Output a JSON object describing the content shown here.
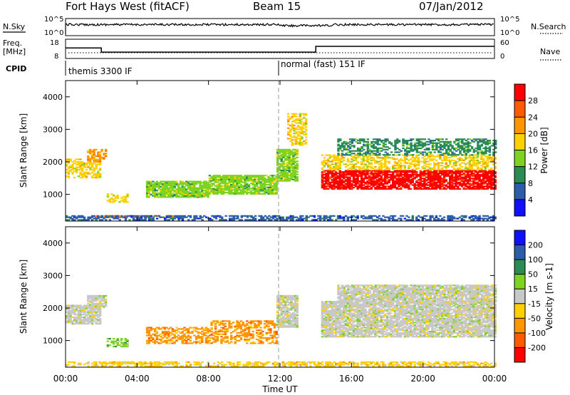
{
  "header": {
    "radar": "Fort Hays West (fitACF)",
    "beam": "Beam 15",
    "date": "07/Jan/2012"
  },
  "strip_labels": {
    "nsky": "N.Sky",
    "nsearch": "N.Search",
    "freq_line1": "Freq.",
    "freq_line2": "[MHz]",
    "nave": "Nave",
    "cpid": "CPID",
    "noise_ticks_left": [
      "10^5",
      "10^0"
    ],
    "noise_ticks_right": [
      "10^5",
      "10^0"
    ],
    "freq_ticks": [
      "18",
      "8"
    ],
    "nave_ticks": [
      "60",
      "0"
    ]
  },
  "cpid": {
    "segments": [
      {
        "label": "themis 3300 IF",
        "start_hour": 0
      },
      {
        "label": "normal (fast) 151 IF",
        "start_hour": 12
      }
    ]
  },
  "time_axis": {
    "label": "Time UT",
    "ticks": [
      "00:00",
      "04:00",
      "08:00",
      "12:00",
      "16:00",
      "20:00",
      "00:00"
    ]
  },
  "chart_data": [
    {
      "type": "line",
      "name": "frequency",
      "ylim": [
        8,
        18
      ],
      "x_hours": [
        0,
        2,
        2,
        14,
        14,
        24
      ],
      "y": [
        13.5,
        13.5,
        11,
        11,
        14.5,
        14.5
      ]
    },
    {
      "type": "heatmap",
      "name": "power",
      "ylabel": "Slant Range [km]",
      "ylim": [
        180,
        4500
      ],
      "y_ticks": [
        1000,
        2000,
        3000,
        4000
      ],
      "colorbar": {
        "label": "Power [dB]",
        "ticks": [
          "28",
          "24",
          "20",
          "16",
          "12",
          "8",
          "4"
        ],
        "colors": [
          "#ff0000",
          "#ff5a00",
          "#ff9600",
          "#ffd000",
          "#7ed321",
          "#2a8c55",
          "#2c5caa",
          "#1010ff"
        ]
      },
      "regions": [
        {
          "t0": 0,
          "t1": 1.9,
          "r0": 1500,
          "r1": 2100,
          "level": 3
        },
        {
          "t0": 1.2,
          "t1": 2.3,
          "r0": 2000,
          "r1": 2400,
          "level": 2
        },
        {
          "t0": 2.3,
          "t1": 3.5,
          "r0": 750,
          "r1": 1000,
          "level": 3
        },
        {
          "t0": 1.5,
          "t1": 6.2,
          "r0": 280,
          "r1": 360,
          "level": 1
        },
        {
          "t0": 4.5,
          "t1": 8.0,
          "r0": 900,
          "r1": 1400,
          "level": 4
        },
        {
          "t0": 8.0,
          "t1": 11.8,
          "r0": 1000,
          "r1": 1600,
          "level": 4
        },
        {
          "t0": 11.8,
          "t1": 13.0,
          "r0": 1400,
          "r1": 2400,
          "level": 4
        },
        {
          "t0": 12.4,
          "t1": 13.4,
          "r0": 2500,
          "r1": 3500,
          "level": 3
        },
        {
          "t0": 14.3,
          "t1": 24,
          "r0": 1150,
          "r1": 1750,
          "level": 0
        },
        {
          "t0": 14.3,
          "t1": 24,
          "r0": 1750,
          "r1": 2200,
          "level": 3
        },
        {
          "t0": 15.2,
          "t1": 24,
          "r0": 2200,
          "r1": 2700,
          "level": 5
        },
        {
          "t0": 0,
          "t1": 24,
          "r0": 200,
          "r1": 330,
          "level": 6
        }
      ]
    },
    {
      "type": "heatmap",
      "name": "velocity",
      "ylabel": "Slant Range [km]",
      "ylim": [
        180,
        4500
      ],
      "y_ticks": [
        1000,
        2000,
        3000,
        4000
      ],
      "colorbar": {
        "label": "Velocity [m s-1]",
        "ticks": [
          "200",
          "100",
          "50",
          "15",
          "-15",
          "-50",
          "-100",
          "-200"
        ],
        "colors": [
          "#1010ff",
          "#2c5caa",
          "#2a8c55",
          "#7ed321",
          "#c8c8c8",
          "#ffd000",
          "#ff9600",
          "#ff5a00",
          "#ff0000"
        ]
      },
      "regions": [
        {
          "t0": 0,
          "t1": 1.9,
          "r0": 1500,
          "r1": 2100,
          "level": 4
        },
        {
          "t0": 1.2,
          "t1": 2.3,
          "r0": 2000,
          "r1": 2400,
          "level": 4
        },
        {
          "t0": 2.3,
          "t1": 3.5,
          "r0": 800,
          "r1": 1050,
          "level": 3
        },
        {
          "t0": 1.5,
          "t1": 6.2,
          "r0": 280,
          "r1": 360,
          "level": 5
        },
        {
          "t0": 4.5,
          "t1": 8.0,
          "r0": 900,
          "r1": 1400,
          "level": 6
        },
        {
          "t0": 8.0,
          "t1": 11.8,
          "r0": 900,
          "r1": 1600,
          "level": 6
        },
        {
          "t0": 11.8,
          "t1": 13.0,
          "r0": 1400,
          "r1": 2400,
          "level": 4
        },
        {
          "t0": 14.3,
          "t1": 24,
          "r0": 1100,
          "r1": 2200,
          "level": 4
        },
        {
          "t0": 15.2,
          "t1": 24,
          "r0": 2200,
          "r1": 2700,
          "level": 4
        },
        {
          "t0": 0,
          "t1": 24,
          "r0": 200,
          "r1": 330,
          "level": 5
        }
      ]
    }
  ]
}
